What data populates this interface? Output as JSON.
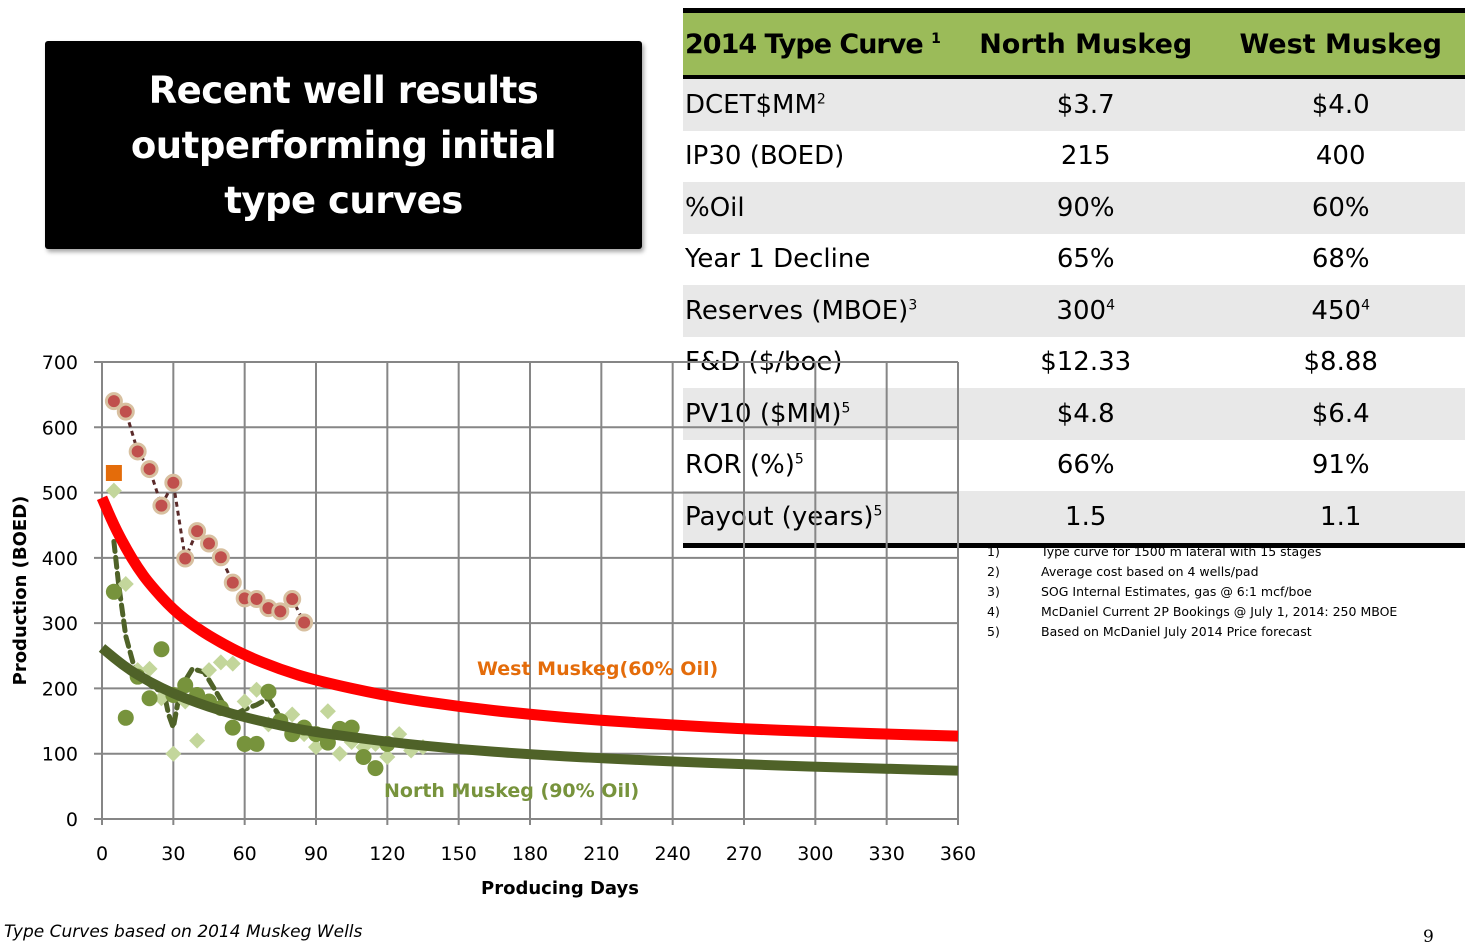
{
  "title": {
    "lines": [
      "Recent well results",
      "outperforming initial",
      "type curves"
    ]
  },
  "table": {
    "headers": [
      "2014 Type Curve",
      "North Muskeg",
      "West Muskeg"
    ],
    "header_footnote": "1",
    "rows": [
      {
        "label": "DCET$MM",
        "sup": "2",
        "north": "$3.7",
        "north_sup": "",
        "west": "$4.0",
        "west_sup": ""
      },
      {
        "label": "IP30 (BOED)",
        "sup": "",
        "north": "215",
        "north_sup": "",
        "west": "400",
        "west_sup": ""
      },
      {
        "label": "%Oil",
        "sup": "",
        "north": "90%",
        "north_sup": "",
        "west": "60%",
        "west_sup": ""
      },
      {
        "label": "Year 1 Decline",
        "sup": "",
        "north": "65%",
        "north_sup": "",
        "west": "68%",
        "west_sup": ""
      },
      {
        "label": "Reserves (MBOE)",
        "sup": "3",
        "north": "300",
        "north_sup": "4",
        "west": "450",
        "west_sup": "4"
      },
      {
        "label": "F&D ($/boe)",
        "sup": "",
        "north": "$12.33",
        "north_sup": "",
        "west": "$8.88",
        "west_sup": ""
      },
      {
        "label": "PV10 ($MM)",
        "sup": "5",
        "north": "$4.8",
        "north_sup": "",
        "west": "$6.4",
        "west_sup": ""
      },
      {
        "label": "ROR (%)",
        "sup": "5",
        "north": "66%",
        "north_sup": "",
        "west": "91%",
        "west_sup": ""
      },
      {
        "label": "Payout (years)",
        "sup": "5",
        "north": "1.5",
        "north_sup": "",
        "west": "1.1",
        "west_sup": ""
      }
    ],
    "header_color": "#9bbb59",
    "stripe_color": "#e8e8e8"
  },
  "footnotes": [
    {
      "num": "1)",
      "text": "Type curve for 1500 m lateral with 15 stages"
    },
    {
      "num": "2)",
      "text": "Average cost based on 4 wells/pad"
    },
    {
      "num": "3)",
      "text": "SOG Internal Estimates, gas @ 6:1 mcf/boe"
    },
    {
      "num": "4)",
      "text": "McDaniel Current 2P Bookings @ July 1, 2014: 250 MBOE"
    },
    {
      "num": "5)",
      "text": "Based on McDaniel July 2014 Price forecast"
    }
  ],
  "footer_note": "Type Curves based on 2014 Muskeg Wells",
  "page_number": "9",
  "chart_data": {
    "type": "scatter",
    "title": "",
    "xlabel": "Producing Days",
    "ylabel": "Production (BOED)",
    "xlim": [
      0,
      360
    ],
    "ylim": [
      0,
      700
    ],
    "xticks": [
      0,
      30,
      60,
      90,
      120,
      150,
      180,
      210,
      240,
      270,
      300,
      330,
      360
    ],
    "yticks": [
      0,
      100,
      200,
      300,
      400,
      500,
      600,
      700
    ],
    "grid": true,
    "legend": "none",
    "annotations": [
      {
        "text": "West Muskeg(60% Oil)",
        "color": "#e46c0a",
        "x": 255,
        "y": 230
      },
      {
        "text": "North Muskeg (90% Oil)",
        "color": "#77933c",
        "x": 285,
        "y": 40
      }
    ],
    "series": [
      {
        "name": "West Muskeg type curve (60% Oil)",
        "kind": "line",
        "color": "#ff0000",
        "x": [
          0,
          5,
          10,
          15,
          20,
          30,
          40,
          50,
          60,
          75,
          90,
          120,
          150,
          180,
          210,
          240,
          270,
          300,
          330,
          360
        ],
        "y": [
          492,
          450,
          415,
          385,
          360,
          320,
          292,
          270,
          251,
          229,
          212,
          188,
          172,
          160,
          151,
          144,
          138,
          134,
          130,
          127
        ]
      },
      {
        "name": "North Muskeg type curve (90% Oil)",
        "kind": "line",
        "color": "#4f6228",
        "x": [
          0,
          10,
          20,
          30,
          40,
          50,
          60,
          75,
          90,
          120,
          150,
          180,
          210,
          240,
          270,
          300,
          330,
          360
        ],
        "y": [
          262,
          232,
          210,
          192,
          178,
          166,
          156,
          143,
          133,
          118,
          107,
          99,
          93,
          88,
          84,
          80,
          77,
          74
        ]
      },
      {
        "name": "West Muskeg recent well",
        "kind": "dotted-line-markers",
        "color": "#c0504d",
        "x": [
          5,
          10,
          15,
          20,
          25,
          30,
          35,
          40,
          45,
          50,
          55,
          60,
          65,
          70,
          75,
          80,
          85
        ],
        "y": [
          640,
          624,
          563,
          536,
          480,
          515,
          399,
          441,
          422,
          401,
          362,
          338,
          337,
          323,
          318,
          337,
          301
        ]
      },
      {
        "name": "North Muskeg well (dashed)",
        "kind": "dashed-line",
        "color": "#4f6228",
        "x": [
          5,
          7,
          10,
          13,
          17,
          22,
          26,
          28,
          30,
          33,
          38,
          43,
          48,
          52,
          56,
          60,
          65,
          70,
          75
        ],
        "y": [
          425,
          360,
          280,
          240,
          215,
          200,
          195,
          160,
          140,
          200,
          230,
          225,
          195,
          170,
          160,
          168,
          175,
          185,
          155
        ]
      },
      {
        "name": "North Muskeg wells (circles)",
        "kind": "markers",
        "color": "#77933c",
        "x": [
          5,
          10,
          15,
          20,
          25,
          30,
          35,
          40,
          45,
          50,
          55,
          60,
          65,
          70,
          75,
          80,
          85,
          90,
          95,
          100,
          105,
          110,
          115,
          120
        ],
        "y": [
          348,
          155,
          218,
          185,
          260,
          190,
          205,
          190,
          180,
          170,
          140,
          115,
          115,
          195,
          150,
          130,
          140,
          130,
          117,
          138,
          140,
          95,
          78,
          115
        ]
      },
      {
        "name": "North Muskeg wells (diamonds)",
        "kind": "diamond-markers",
        "color": "#c3d69b",
        "x": [
          5,
          10,
          15,
          20,
          25,
          30,
          35,
          40,
          45,
          50,
          55,
          60,
          65,
          70,
          75,
          80,
          85,
          90,
          95,
          100,
          105,
          110,
          115,
          120,
          125,
          130,
          135
        ],
        "y": [
          503,
          360,
          228,
          230,
          185,
          100,
          180,
          120,
          228,
          240,
          238,
          180,
          198,
          145,
          148,
          160,
          130,
          110,
          165,
          100,
          118,
          110,
          115,
          95,
          130,
          105,
          110
        ]
      },
      {
        "name": "Initial point",
        "kind": "square-marker",
        "color": "#e46c0a",
        "x": [
          5
        ],
        "y": [
          530
        ]
      }
    ]
  }
}
